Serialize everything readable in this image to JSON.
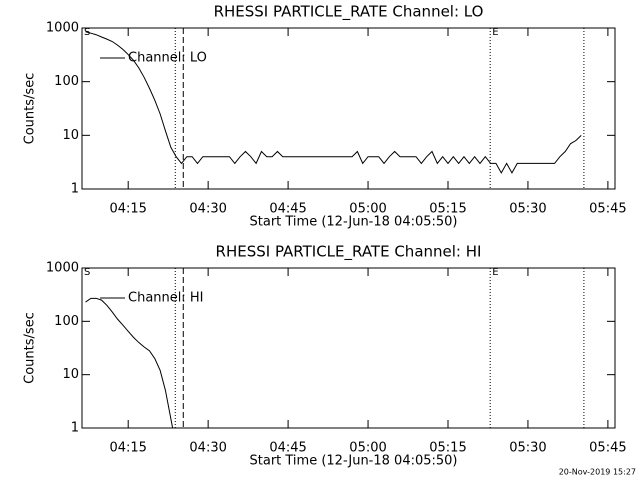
{
  "chart_data": [
    {
      "type": "line",
      "title": "RHESSI PARTICLE_RATE Channel: LO",
      "xlabel": "Start Time (12-Jun-18 04:05:50)",
      "ylabel": "Counts/sec",
      "x": [
        "04:07",
        "04:08",
        "04:09",
        "04:10",
        "04:11",
        "04:12",
        "04:13",
        "04:14",
        "04:15",
        "04:16",
        "04:17",
        "04:18",
        "04:19",
        "04:20",
        "04:21",
        "04:22",
        "04:23",
        "04:24",
        "04:25",
        "04:26",
        "04:27",
        "04:28",
        "04:29",
        "04:30",
        "04:31",
        "04:32",
        "04:33",
        "04:34",
        "04:35",
        "04:36",
        "04:37",
        "04:38",
        "04:39",
        "04:40",
        "04:41",
        "04:42",
        "04:43",
        "04:44",
        "04:45",
        "04:46",
        "04:47",
        "04:48",
        "04:49",
        "04:50",
        "04:51",
        "04:52",
        "04:53",
        "04:54",
        "04:55",
        "04:56",
        "04:57",
        "04:58",
        "04:59",
        "05:00",
        "05:01",
        "05:02",
        "05:03",
        "05:04",
        "05:05",
        "05:06",
        "05:07",
        "05:08",
        "05:09",
        "05:10",
        "05:11",
        "05:12",
        "05:13",
        "05:14",
        "05:15",
        "05:16",
        "05:17",
        "05:18",
        "05:19",
        "05:20",
        "05:21",
        "05:22",
        "05:23",
        "05:24",
        "05:25",
        "05:26",
        "05:27",
        "05:28",
        "05:29",
        "05:30",
        "05:31",
        "05:32",
        "05:33",
        "05:34",
        "05:35",
        "05:36",
        "05:37",
        "05:38",
        "05:39",
        "05:40"
      ],
      "series": [
        {
          "name": "Channel: LO",
          "color": "#000000",
          "values": [
            850,
            800,
            750,
            680,
            620,
            560,
            480,
            400,
            320,
            250,
            180,
            120,
            75,
            45,
            25,
            12,
            6,
            4,
            3,
            4,
            4,
            3,
            4,
            4,
            4,
            4,
            4,
            4,
            3,
            4,
            5,
            4,
            3,
            5,
            4,
            4,
            5,
            4,
            4,
            4,
            4,
            4,
            4,
            4,
            4,
            4,
            4,
            4,
            4,
            4,
            4,
            5,
            3,
            4,
            4,
            4,
            3,
            4,
            5,
            4,
            4,
            4,
            4,
            3,
            4,
            5,
            3,
            4,
            3,
            4,
            3,
            4,
            3,
            4,
            3,
            4,
            3,
            3,
            2,
            3,
            2,
            3,
            3,
            3,
            3,
            3,
            3,
            3,
            3,
            4,
            5,
            7,
            8,
            10
          ]
        }
      ],
      "xlim": [
        "04:06:20",
        "05:46:20"
      ],
      "xticks": [
        "04:15",
        "04:30",
        "04:45",
        "05:00",
        "05:15",
        "05:30",
        "05:45"
      ],
      "ylim": [
        1,
        1000
      ],
      "yticks": [
        1,
        10,
        100,
        1000
      ],
      "ylog": true,
      "vlines": [
        {
          "x": "04:23:50",
          "style": "dotted"
        },
        {
          "x": "04:25:20",
          "style": "dashed"
        },
        {
          "x": "05:22:55",
          "style": "dotted"
        },
        {
          "x": "05:40:30",
          "style": "dotted"
        }
      ],
      "annotations": [
        {
          "text": "S",
          "x": "04:06:20"
        },
        {
          "text": "E",
          "x": "05:22:55"
        }
      ]
    },
    {
      "type": "line",
      "title": "RHESSI PARTICLE_RATE Channel: HI",
      "xlabel": "Start Time (12-Jun-18 04:05:50)",
      "ylabel": "Counts/sec",
      "x": [
        "04:07",
        "04:08",
        "04:09",
        "04:10",
        "04:11",
        "04:12",
        "04:13",
        "04:14",
        "04:15",
        "04:16",
        "04:17",
        "04:18",
        "04:19",
        "04:20",
        "04:21",
        "04:22",
        "04:23",
        "04:23:20"
      ],
      "series": [
        {
          "name": "Channel: HI",
          "color": "#000000",
          "values": [
            230,
            270,
            270,
            250,
            200,
            150,
            110,
            85,
            65,
            50,
            40,
            33,
            28,
            20,
            12,
            5,
            1.5,
            1
          ]
        }
      ],
      "xlim": [
        "04:06:20",
        "05:46:20"
      ],
      "xticks": [
        "04:15",
        "04:30",
        "04:45",
        "05:00",
        "05:15",
        "05:30",
        "05:45"
      ],
      "ylim": [
        1,
        1000
      ],
      "yticks": [
        1,
        10,
        100,
        1000
      ],
      "ylog": true,
      "vlines": [
        {
          "x": "04:23:50",
          "style": "dotted"
        },
        {
          "x": "04:25:20",
          "style": "dashed"
        },
        {
          "x": "05:22:55",
          "style": "dotted"
        },
        {
          "x": "05:40:30",
          "style": "dotted"
        }
      ],
      "annotations": [
        {
          "text": "S",
          "x": "04:06:20"
        },
        {
          "text": "E",
          "x": "05:22:55"
        }
      ]
    }
  ],
  "footer": "20-Nov-2019 15:27"
}
